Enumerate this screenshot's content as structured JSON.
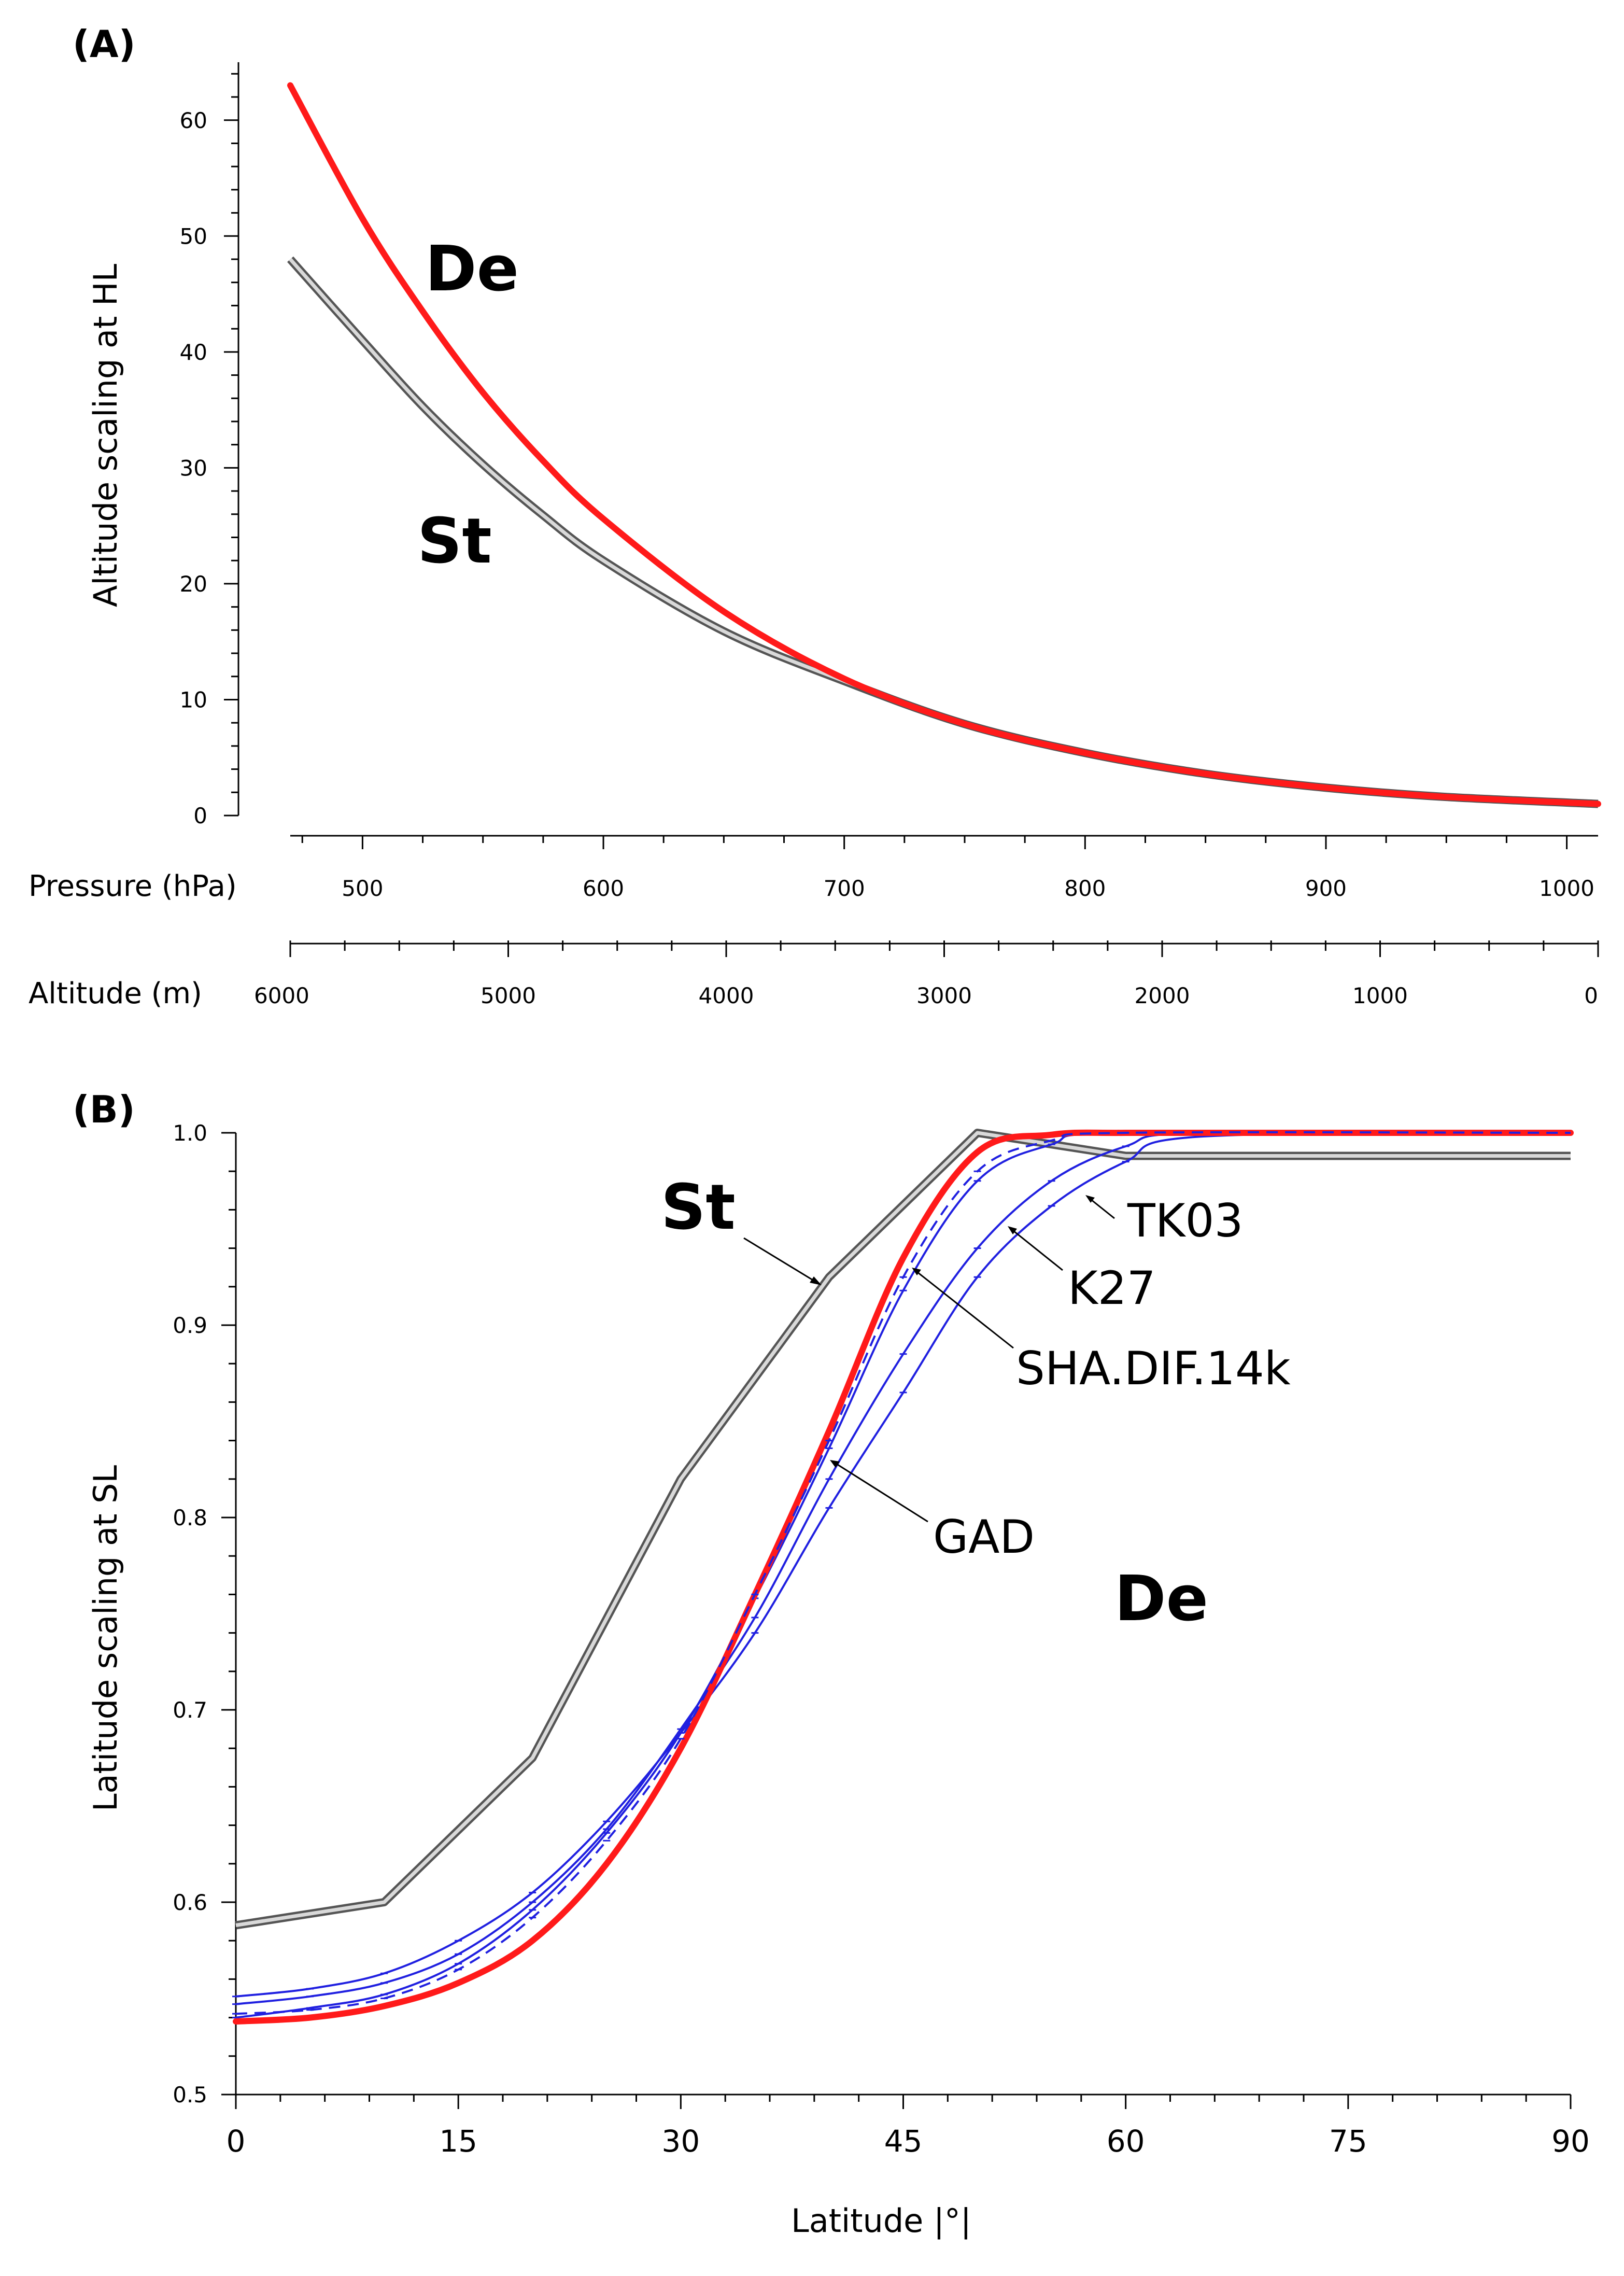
{
  "chart_data": [
    {
      "type": "line",
      "panel": "(A)",
      "ylabel": "Altitude scaling at HL",
      "ylim": [
        0,
        65
      ],
      "y_ticks": [
        "0",
        "10",
        "20",
        "30",
        "40",
        "50",
        "60"
      ],
      "pressure_axis": {
        "label": "Pressure (hPa)",
        "range": [
          470,
          1013
        ],
        "ticks": [
          "500",
          "600",
          "700",
          "800",
          "900",
          "1000"
        ]
      },
      "altitude_axis": {
        "label": "Altitude (m)",
        "range": [
          6000,
          0
        ],
        "ticks": [
          "6000",
          "5000",
          "4000",
          "3000",
          "2000",
          "1000",
          "0"
        ]
      },
      "series": [
        {
          "name": "De",
          "color": "#ff1a1a",
          "x_pressure": [
            470,
            500,
            525,
            550,
            575,
            600,
            650,
            700,
            750,
            800,
            850,
            900,
            950,
            1013
          ],
          "values": [
            63.0,
            51.5,
            43.5,
            36.5,
            30.6,
            25.6,
            17.6,
            11.8,
            7.9,
            5.4,
            3.6,
            2.4,
            1.6,
            1.0
          ]
        },
        {
          "name": "St",
          "color": "#8c8c8c",
          "x_pressure": [
            470,
            500,
            525,
            550,
            575,
            600,
            650,
            700,
            750,
            800,
            850,
            900,
            950,
            1013
          ],
          "values": [
            48.0,
            41.0,
            35.3,
            30.3,
            25.9,
            22.0,
            15.9,
            11.6,
            7.9,
            5.4,
            3.6,
            2.4,
            1.6,
            1.0
          ]
        }
      ]
    },
    {
      "type": "line",
      "panel": "(B)",
      "xlabel": "Latitude |°|",
      "ylabel": "Latitude scaling at SL",
      "xlim": [
        0,
        90
      ],
      "ylim": [
        0.5,
        1.0
      ],
      "x_ticks": [
        "0",
        "15",
        "30",
        "45",
        "60",
        "75",
        "90"
      ],
      "y_ticks": [
        "0.5",
        "0.6",
        "0.7",
        "0.8",
        "0.9",
        "1.0"
      ],
      "series": [
        {
          "name": "St",
          "color": "#8c8c8c",
          "x": [
            0,
            10,
            20,
            30,
            40,
            50,
            60,
            90
          ],
          "values": [
            0.588,
            0.6,
            0.675,
            0.82,
            0.925,
            1.0,
            0.988,
            0.988
          ]
        },
        {
          "name": "De",
          "color": "#ff1a1a",
          "x": [
            0,
            5,
            10,
            15,
            20,
            25,
            30,
            35,
            40,
            45,
            50,
            55,
            60,
            70,
            90
          ],
          "values": [
            0.538,
            0.54,
            0.546,
            0.558,
            0.58,
            0.62,
            0.68,
            0.76,
            0.845,
            0.935,
            0.99,
            0.999,
            1.0,
            1.0,
            1.0
          ]
        },
        {
          "name": "GAD",
          "color": "#2020e0",
          "x": [
            0,
            5,
            10,
            15,
            20,
            25,
            30,
            35,
            40,
            45,
            50,
            55,
            60,
            90
          ],
          "values": [
            0.542,
            0.544,
            0.55,
            0.565,
            0.592,
            0.632,
            0.685,
            0.76,
            0.84,
            0.925,
            0.98,
            0.996,
            1.0,
            1.0
          ]
        },
        {
          "name": "SHA.DIF.14k",
          "color": "#2020e0",
          "x": [
            0,
            5,
            10,
            15,
            20,
            25,
            30,
            35,
            40,
            45,
            50,
            55,
            60,
            90
          ],
          "values": [
            0.54,
            0.545,
            0.552,
            0.568,
            0.596,
            0.636,
            0.688,
            0.758,
            0.836,
            0.918,
            0.975,
            0.994,
            1.0,
            1.0
          ]
        },
        {
          "name": "K27",
          "color": "#2020e0",
          "x": [
            0,
            5,
            10,
            15,
            20,
            25,
            30,
            35,
            40,
            45,
            50,
            55,
            60,
            65,
            90
          ],
          "values": [
            0.547,
            0.551,
            0.558,
            0.573,
            0.6,
            0.638,
            0.69,
            0.748,
            0.82,
            0.885,
            0.94,
            0.975,
            0.993,
            1.0,
            1.0
          ]
        },
        {
          "name": "TK03",
          "color": "#2020e0",
          "x": [
            0,
            5,
            10,
            15,
            20,
            25,
            30,
            35,
            40,
            45,
            50,
            55,
            60,
            65,
            90
          ],
          "values": [
            0.551,
            0.555,
            0.563,
            0.58,
            0.605,
            0.642,
            0.688,
            0.74,
            0.805,
            0.865,
            0.925,
            0.962,
            0.985,
            0.998,
            1.0
          ]
        }
      ]
    }
  ]
}
